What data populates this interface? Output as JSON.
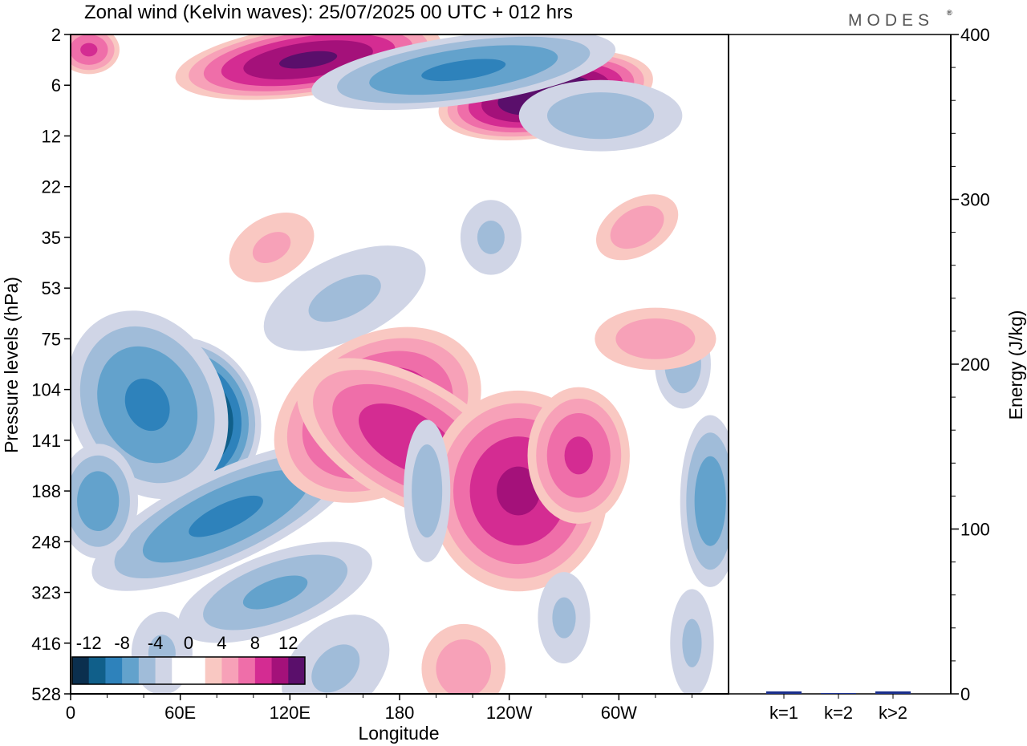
{
  "chart_data": {
    "type": "heatmap",
    "title": "Zonal wind (Kelvin waves):  25/07/2025  00 UTC  + 012 hrs",
    "brand": "MODES",
    "brand_mark": "®",
    "xlabel": "Longitude",
    "ylabel": "Pressure levels (hPa)",
    "x_ticks": [
      "0",
      "60E",
      "120E",
      "180",
      "120W",
      "60W"
    ],
    "x_tick_values": [
      0,
      60,
      120,
      180,
      240,
      300
    ],
    "x_range": [
      0,
      360
    ],
    "y_ticks": [
      "2",
      "6",
      "12",
      "22",
      "35",
      "53",
      "75",
      "104",
      "141",
      "188",
      "248",
      "323",
      "416",
      "528"
    ],
    "colorbar": {
      "labels": [
        "-12",
        "-8",
        "-4",
        "0",
        "4",
        "8",
        "12"
      ],
      "colors": [
        "#0b2f4e",
        "#105f8a",
        "#2e82bb",
        "#63a2cc",
        "#a0bcd9",
        "#d0d5e6",
        "#ffffff",
        "#ffffff",
        "#f9c8c2",
        "#f7a1b8",
        "#ef6ea9",
        "#d42c92",
        "#a4117a",
        "#5a0f6b"
      ]
    },
    "anomalies": [
      {
        "lon": 62,
        "lev": 7.6,
        "value": -15,
        "sx": 28,
        "sy": 1.6,
        "rot": -20
      },
      {
        "lon": 42,
        "lev": 7.3,
        "value": -8,
        "sx": 30,
        "sy": 2.0,
        "rot": -25
      },
      {
        "lon": 85,
        "lev": 9.5,
        "value": -8,
        "sx": 18,
        "sy": 3.0,
        "rot": 65
      },
      {
        "lon": 112,
        "lev": 11.0,
        "value": -6,
        "sx": 16,
        "sy": 2.2,
        "rot": 70
      },
      {
        "lon": 15,
        "lev": 9.2,
        "value": -7,
        "sx": 16,
        "sy": 1.2,
        "rot": 0
      },
      {
        "lon": 150,
        "lev": 5.2,
        "value": -4,
        "sx": 40,
        "sy": 1.0,
        "rot": -25
      },
      {
        "lon": 145,
        "lev": 12.5,
        "value": -4,
        "sx": 20,
        "sy": 1.5,
        "rot": 45
      },
      {
        "lon": 168,
        "lev": 7.5,
        "value": 10,
        "sx": 30,
        "sy": 2.2,
        "rot": 60
      },
      {
        "lon": 185,
        "lev": 8.0,
        "value": 9,
        "sx": 24,
        "sy": 2.5,
        "rot": -60
      },
      {
        "lon": 245,
        "lev": 9.0,
        "value": 10,
        "sx": 34,
        "sy": 2.0,
        "rot": 0
      },
      {
        "lon": 278,
        "lev": 8.3,
        "value": 8,
        "sx": 20,
        "sy": 1.4,
        "rot": 0
      },
      {
        "lon": 195,
        "lev": 9.0,
        "value": -5,
        "sx": 10,
        "sy": 1.6,
        "rot": 0
      },
      {
        "lon": 350,
        "lev": 9.2,
        "value": -7,
        "sx": 12,
        "sy": 1.8,
        "rot": 0
      },
      {
        "lon": 335,
        "lev": 6.5,
        "value": -5,
        "sx": 12,
        "sy": 1.0,
        "rot": 0
      },
      {
        "lon": 320,
        "lev": 6.0,
        "value": 5,
        "sx": 26,
        "sy": 0.7,
        "rot": 0
      },
      {
        "lon": 260,
        "lev": 1.2,
        "value": 14,
        "sx": 40,
        "sy": 0.8,
        "rot": -10
      },
      {
        "lon": 130,
        "lev": 0.5,
        "value": 12,
        "sx": 50,
        "sy": 0.7,
        "rot": -8
      },
      {
        "lon": 215,
        "lev": 0.7,
        "value": -8,
        "sx": 60,
        "sy": 0.7,
        "rot": -8
      },
      {
        "lon": 290,
        "lev": 1.6,
        "value": -5,
        "sx": 35,
        "sy": 0.8,
        "rot": 0
      },
      {
        "lon": 10,
        "lev": 0.3,
        "value": 8,
        "sx": 12,
        "sy": 0.5,
        "rot": 0
      },
      {
        "lon": 310,
        "lev": 3.8,
        "value": 5,
        "sx": 12,
        "sy": 1.0,
        "rot": 60
      },
      {
        "lon": 110,
        "lev": 4.2,
        "value": 4,
        "sx": 14,
        "sy": 1.1,
        "rot": 60
      },
      {
        "lon": 230,
        "lev": 4.0,
        "value": -4,
        "sx": 14,
        "sy": 0.9,
        "rot": 0
      },
      {
        "lon": 215,
        "lev": 12.5,
        "value": 5,
        "sx": 18,
        "sy": 1.0,
        "rot": 0
      },
      {
        "lon": 270,
        "lev": 11.5,
        "value": -4,
        "sx": 12,
        "sy": 1.1,
        "rot": 0
      },
      {
        "lon": 340,
        "lev": 12.0,
        "value": -4,
        "sx": 10,
        "sy": 1.3,
        "rot": 0
      },
      {
        "lon": 50,
        "lev": 12.2,
        "value": -4,
        "sx": 14,
        "sy": 1.0,
        "rot": 0
      }
    ],
    "energy_panel": {
      "ylabel": "Energy (J/kg)",
      "ylim": [
        0,
        400
      ],
      "y_ticks": [
        0,
        100,
        200,
        300,
        400
      ],
      "categories": [
        "k=1",
        "k=2",
        "k>2"
      ],
      "values": [
        1.5,
        0.5,
        1.5
      ],
      "bar_color": "#1a2f8c"
    }
  }
}
